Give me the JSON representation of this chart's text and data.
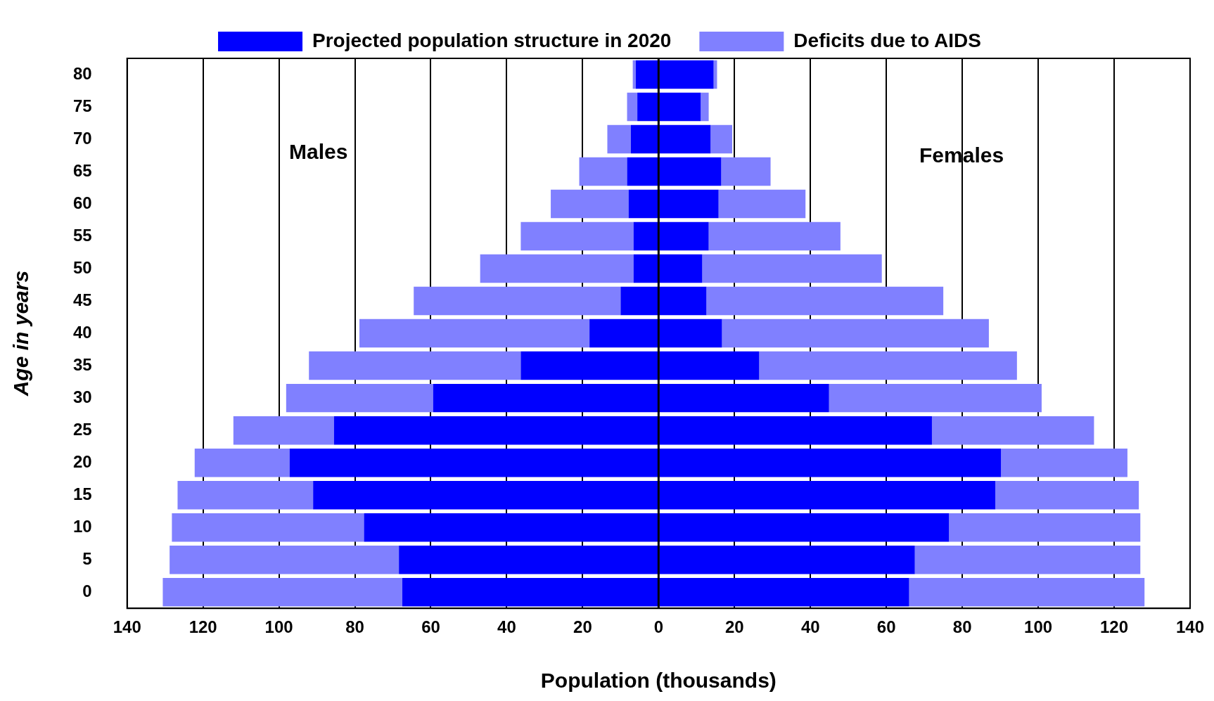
{
  "chart_data": {
    "type": "bar",
    "orientation": "horizontal",
    "stacked": true,
    "xlabel": "Population (thousands)",
    "ylabel": "Age in years",
    "categories": [
      "80",
      "75",
      "70",
      "65",
      "60",
      "55",
      "50",
      "45",
      "40",
      "35",
      "30",
      "25",
      "20",
      "15",
      "10",
      "5",
      "0"
    ],
    "series": [
      {
        "name": "Projected population structure in 2020",
        "color": "#0000ff",
        "values": [
          -6.0,
          -5.6,
          -7.3,
          -8.3,
          -7.9,
          -6.6,
          -6.6,
          -10.0,
          -18.2,
          -36.3,
          -59.4,
          -85.5,
          -97.2,
          -91.0,
          -77.6,
          -68.4,
          -67.5
        ]
      },
      {
        "name": "Deficits due to AIDS",
        "color": "#8080ff",
        "values": [
          -0.8,
          -2.7,
          -6.2,
          -12.6,
          -20.5,
          -29.7,
          -40.4,
          -54.5,
          -60.6,
          -55.8,
          -38.7,
          -26.5,
          -25.0,
          -35.7,
          -50.6,
          -60.4,
          -63.1
        ]
      },
      {
        "color": "#0000ff",
        "values": [
          14.5,
          11.1,
          13.7,
          16.5,
          15.8,
          13.2,
          11.5,
          12.6,
          16.7,
          26.5,
          44.9,
          72.0,
          90.2,
          88.7,
          76.5,
          67.5,
          66.0
        ]
      },
      {
        "color": "#8080ff",
        "values": [
          0.9,
          2.1,
          5.7,
          13.0,
          22.9,
          34.7,
          47.3,
          62.4,
          70.3,
          67.9,
          56.0,
          42.7,
          33.3,
          37.8,
          50.4,
          59.4,
          62.0
        ]
      }
    ],
    "xlim": [
      -140,
      140
    ],
    "xticks": [
      {
        "value": -140,
        "label": "140"
      },
      {
        "value": -120,
        "label": "120"
      },
      {
        "value": -100,
        "label": "100"
      },
      {
        "value": -80,
        "label": "80"
      },
      {
        "value": -60,
        "label": "60"
      },
      {
        "value": -40,
        "label": "40"
      },
      {
        "value": -20,
        "label": "20"
      },
      0,
      20,
      40,
      60,
      80,
      100,
      120,
      140
    ],
    "annotations": [
      "Males",
      "Females"
    ],
    "grid": "x",
    "legend": "top"
  }
}
